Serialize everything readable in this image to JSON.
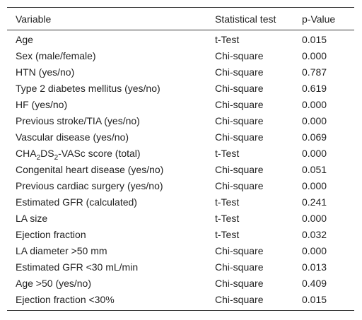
{
  "table": {
    "header": [
      "Variable",
      "Statistical test",
      "p-Value"
    ],
    "rows": [
      [
        "Age",
        "t-Test",
        "0.015"
      ],
      [
        "Sex (male/female)",
        "Chi-square",
        "0.000"
      ],
      [
        "HTN (yes/no)",
        "Chi-square",
        "0.787"
      ],
      [
        "Type 2 diabetes mellitus (yes/no)",
        "Chi-square",
        "0.619"
      ],
      [
        "HF (yes/no)",
        "Chi-square",
        "0.000"
      ],
      [
        "Previous stroke/TIA (yes/no)",
        "Chi-square",
        "0.000"
      ],
      [
        "Vascular disease (yes/no)",
        "Chi-square",
        "0.069"
      ],
      [
        [
          "CHA",
          "2",
          "DS",
          "2",
          "-VASc score (total)"
        ],
        "t-Test",
        "0.000"
      ],
      [
        "Congenital heart disease (yes/no)",
        "Chi-square",
        "0.051"
      ],
      [
        "Previous cardiac surgery (yes/no)",
        "Chi-square",
        "0.000"
      ],
      [
        "Estimated GFR (calculated)",
        "t-Test",
        "0.241"
      ],
      [
        "LA size",
        "t-Test",
        "0.000"
      ],
      [
        "Ejection fraction",
        "t-Test",
        "0.032"
      ],
      [
        "LA diameter >50 mm",
        "Chi-square",
        "0.000"
      ],
      [
        "Estimated GFR <30 mL/min",
        "Chi-square",
        "0.013"
      ],
      [
        "Age >50 (yes/no)",
        "Chi-square",
        "0.409"
      ],
      [
        "Ejection fraction <30%",
        "Chi-square",
        "0.015"
      ]
    ]
  }
}
